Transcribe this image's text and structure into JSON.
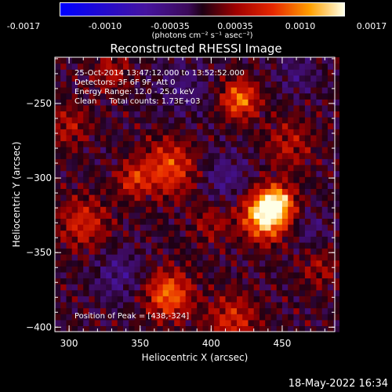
{
  "colorbar": {
    "ticks": [
      "-0.0017",
      "-0.0010",
      "-0.00035",
      "0.00035",
      "0.0010",
      "0.0017"
    ],
    "units_text": "(photons cm⁻² s⁻¹ asec⁻²)",
    "range": [
      -0.0017,
      0.0017
    ]
  },
  "chart_data": {
    "type": "heatmap",
    "title": "Reconstructed RHESSI Image",
    "xlabel": "Heliocentric X (arcsec)",
    "ylabel": "Heliocentric Y (arcsec)",
    "xlim": [
      290,
      487
    ],
    "ylim": [
      -403,
      -219
    ],
    "xticks": [
      300,
      350,
      400,
      450
    ],
    "yticks": [
      -250,
      -300,
      -350,
      -400
    ],
    "colormap": "RHESSI red-temperature",
    "peak": [
      438,
      -324
    ],
    "sources": [
      {
        "x": 438,
        "y": -325,
        "amp": 0.0017,
        "sigma": 11
      },
      {
        "x": 447,
        "y": -316,
        "amp": 0.0011,
        "sigma": 8
      },
      {
        "x": 420,
        "y": -247,
        "amp": 0.0011,
        "sigma": 9
      },
      {
        "x": 370,
        "y": -293,
        "amp": 0.0009,
        "sigma": 13
      },
      {
        "x": 345,
        "y": -301,
        "amp": 0.0007,
        "sigma": 8
      },
      {
        "x": 310,
        "y": -330,
        "amp": 0.0007,
        "sigma": 12
      },
      {
        "x": 370,
        "y": -378,
        "amp": 0.0011,
        "sigma": 11
      },
      {
        "x": 455,
        "y": -277,
        "amp": 0.0005,
        "sigma": 12
      },
      {
        "x": 400,
        "y": -330,
        "amp": 0.0004,
        "sigma": 10
      },
      {
        "x": 415,
        "y": -395,
        "amp": 0.0007,
        "sigma": 12
      },
      {
        "x": 300,
        "y": -265,
        "amp": 0.0005,
        "sigma": 10
      },
      {
        "x": 330,
        "y": -229,
        "amp": 0.0005,
        "sigma": 9
      },
      {
        "x": 476,
        "y": -360,
        "amp": 0.0004,
        "sigma": 10
      },
      {
        "x": 410,
        "y": -300,
        "amp": -0.0004,
        "sigma": 12
      },
      {
        "x": 335,
        "y": -365,
        "amp": -0.0004,
        "sigma": 12
      },
      {
        "x": 380,
        "y": -240,
        "amp": -0.0003,
        "sigma": 14
      },
      {
        "x": 460,
        "y": -230,
        "amp": -0.0003,
        "sigma": 10
      },
      {
        "x": 470,
        "y": -335,
        "amp": -0.0003,
        "sigma": 9
      }
    ],
    "annotations": {
      "line1": "25-Oct-2014 13:47:12.000 to 13:52:52.000",
      "line2": "Detectors: 3F 6F 9F, Att 0",
      "line3": "Energy Range: 12.0 - 25.0 keV",
      "line4": "Clean     Total counts: 1.73E+03",
      "peak_text": "Position of Peak = [438,-324]"
    }
  },
  "footer": {
    "date": "18-May-2022 16:34"
  }
}
